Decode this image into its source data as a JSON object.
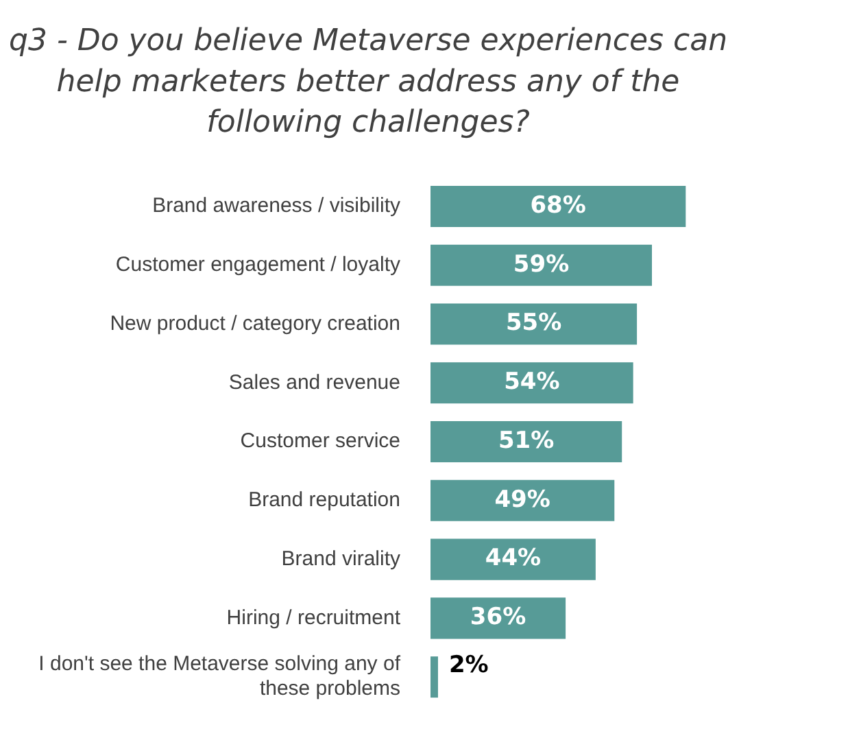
{
  "chart_data": {
    "type": "bar",
    "orientation": "horizontal",
    "title": "q3 - Do you believe Metaverse experiences can help marketers better address any of the following challenges?",
    "categories": [
      "Brand awareness / visibility",
      "Customer engagement / loyalty",
      "New product / category creation",
      "Sales and revenue",
      "Customer service",
      "Brand reputation",
      "Brand virality",
      "Hiring / recruitment",
      "I don't see the Metaverse solving any of these problems"
    ],
    "values": [
      68,
      59,
      55,
      54,
      51,
      49,
      44,
      36,
      2
    ],
    "value_labels": [
      "68%",
      "59%",
      "55%",
      "54%",
      "51%",
      "49%",
      "44%",
      "36%",
      "2%"
    ],
    "color": "#579b97",
    "grid": false,
    "legend": false
  }
}
